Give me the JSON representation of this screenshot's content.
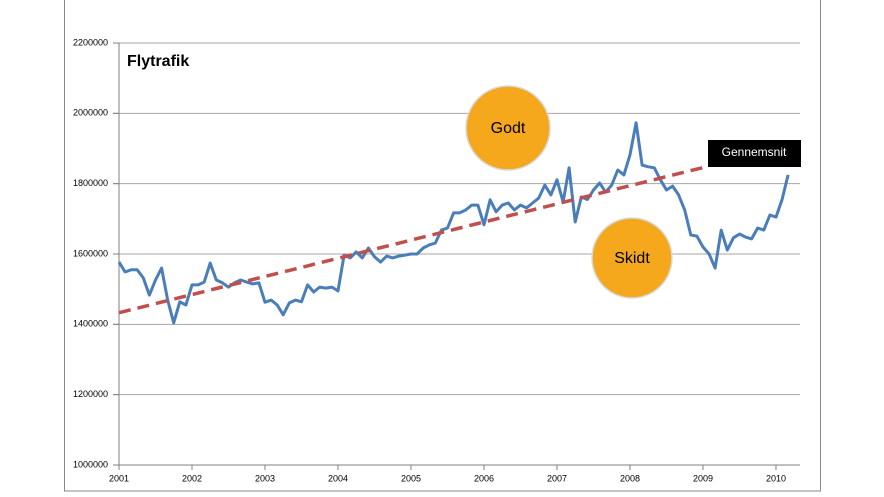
{
  "chart_data": {
    "type": "line",
    "title": "Flytrafik",
    "categories": [
      "2001",
      null,
      null,
      null,
      null,
      null,
      null,
      null,
      null,
      null,
      null,
      null,
      "2002",
      null,
      null,
      null,
      null,
      null,
      null,
      null,
      null,
      null,
      null,
      null,
      "2003",
      null,
      null,
      null,
      null,
      null,
      null,
      null,
      null,
      null,
      null,
      null,
      "2004",
      null,
      null,
      null,
      null,
      null,
      null,
      null,
      null,
      null,
      null,
      null,
      "2005",
      null,
      null,
      null,
      null,
      null,
      null,
      null,
      null,
      null,
      null,
      null,
      "2006",
      null,
      null,
      null,
      null,
      null,
      null,
      null,
      null,
      null,
      null,
      null,
      "2007",
      null,
      null,
      null,
      null,
      null,
      null,
      null,
      null,
      null,
      null,
      null,
      "2008",
      null,
      null,
      null,
      null,
      null,
      null,
      null,
      null,
      null,
      null,
      null,
      "2009",
      null,
      null,
      null,
      null,
      null,
      null,
      null,
      null,
      null,
      null,
      null,
      "2010",
      null,
      null
    ],
    "series": [
      {
        "color": "#4a7ebb",
        "style": "solid",
        "values": [
          1577000,
          1549000,
          1555000,
          1555000,
          1532000,
          1483000,
          1526000,
          1560000,
          1469000,
          1404000,
          1464000,
          1455000,
          1512000,
          1512000,
          1520000,
          1574000,
          1526000,
          1518000,
          1506000,
          1518000,
          1526000,
          1520000,
          1515000,
          1518000,
          1463000,
          1469000,
          1455000,
          1427000,
          1461000,
          1469000,
          1464000,
          1512000,
          1492000,
          1506000,
          1503000,
          1506000,
          1495000,
          1597000,
          1589000,
          1606000,
          1589000,
          1617000,
          1592000,
          1577000,
          1594000,
          1589000,
          1594000,
          1597000,
          1600000,
          1600000,
          1617000,
          1626000,
          1631000,
          1668000,
          1674000,
          1717000,
          1717000,
          1725000,
          1739000,
          1739000,
          1683000,
          1754000,
          1720000,
          1739000,
          1745000,
          1725000,
          1739000,
          1731000,
          1745000,
          1759000,
          1796000,
          1768000,
          1811000,
          1748000,
          1845000,
          1691000,
          1762000,
          1755000,
          1782000,
          1802000,
          1776000,
          1796000,
          1839000,
          1825000,
          1882000,
          1973000,
          1853000,
          1848000,
          1845000,
          1811000,
          1782000,
          1793000,
          1768000,
          1725000,
          1654000,
          1651000,
          1620000,
          1600000,
          1560000,
          1668000,
          1611000,
          1646000,
          1657000,
          1648000,
          1643000,
          1674000,
          1668000,
          1711000,
          1705000,
          1754000,
          1825000
        ]
      },
      {
        "name": "Gennemsnit",
        "color": "#c0504d",
        "style": "dashed",
        "values": [
          1433000,
          1437300,
          1441600,
          1445900,
          1450200,
          1454500,
          1458800,
          1463100,
          1467400,
          1471700,
          1476000,
          1480300,
          1484600,
          1488900,
          1493200,
          1497500,
          1501800,
          1506100,
          1510400,
          1514700,
          1519000,
          1523300,
          1527600,
          1531900,
          1536200,
          1540500,
          1544800,
          1549100,
          1553400,
          1557700,
          1562000,
          1566300,
          1570600,
          1574900,
          1579200,
          1583500,
          1587800,
          1592100,
          1596400,
          1600700,
          1605000,
          1609300,
          1613600,
          1617900,
          1622200,
          1626500,
          1630800,
          1635100,
          1639400,
          1643700,
          1648000,
          1652300,
          1656600,
          1660900,
          1665200,
          1669500,
          1673800,
          1678100,
          1682400,
          1686700,
          1691000,
          1695300,
          1699600,
          1703900,
          1708200,
          1712500,
          1716800,
          1721100,
          1725400,
          1729700,
          1734000,
          1738300,
          1742600,
          1746900,
          1751200,
          1755500,
          1759800,
          1764100,
          1768400,
          1772700,
          1777000,
          1781300,
          1785600,
          1789900,
          1794200,
          1798500,
          1802800,
          1807100,
          1811400,
          1815700,
          1820000,
          1824300,
          1828600,
          1832900,
          1837200,
          1841500,
          1845800,
          1850100,
          null,
          null,
          null,
          null,
          null,
          null,
          null,
          null,
          null,
          null,
          null,
          null,
          null
        ]
      }
    ],
    "ylim": [
      1000000,
      2200000
    ],
    "yticks": [
      1000000,
      1200000,
      1400000,
      1600000,
      1800000,
      2000000,
      2200000
    ],
    "grid": true,
    "annotations": [
      {
        "text": "Godt",
        "color": "#f5a81c"
      },
      {
        "text": "Skidt",
        "color": "#f5a81c"
      }
    ]
  }
}
